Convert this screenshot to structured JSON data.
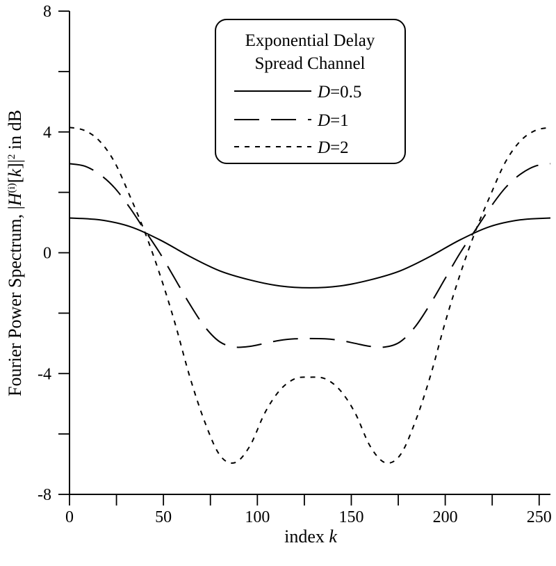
{
  "chart_data": {
    "type": "line",
    "title": "",
    "xlabel": "index k",
    "ylabel": "Fourier Power Spectrum, |H(i)[k]|2 in dB",
    "xlabel_parts": {
      "text": "index ",
      "var": "k"
    },
    "ylabel_parts": {
      "prefix": "Fourier Power Spectrum, |",
      "H": "H",
      "sup": "(i)",
      "bracket_open": "[",
      "k": "k",
      "bracket_close": "]|",
      "sq": "2",
      "suffix": " in dB"
    },
    "xlim": [
      0,
      256
    ],
    "ylim": [
      -8,
      8
    ],
    "x_ticks": [
      0,
      50,
      100,
      150,
      200,
      250
    ],
    "x_tick_labels": [
      "0",
      "50",
      "100",
      "150",
      "200",
      "250"
    ],
    "x_minor_ticks": [
      25,
      75,
      125,
      175,
      225
    ],
    "y_ticks": [
      -8,
      -4,
      0,
      4,
      8
    ],
    "y_tick_labels": [
      "-8",
      "-4",
      "0",
      "4",
      "8"
    ],
    "y_minor_ticks": [
      -6,
      -2,
      2,
      6
    ],
    "grid": false,
    "legend": {
      "title_line1": "Exponential Delay",
      "title_line2": "Spread Channel",
      "placement": "top-center"
    },
    "series": [
      {
        "name": "D=0.5",
        "name_var": "D",
        "name_val": "=0.5",
        "dash": "solid",
        "x": [
          0,
          16,
          32,
          48,
          64,
          80,
          96,
          112,
          128,
          144,
          160,
          176,
          192,
          208,
          224,
          240,
          256
        ],
        "y": [
          1.15,
          1.09,
          0.87,
          0.43,
          -0.12,
          -0.6,
          -0.9,
          -1.1,
          -1.16,
          -1.1,
          -0.9,
          -0.6,
          -0.12,
          0.43,
          0.87,
          1.09,
          1.15
        ]
      },
      {
        "name": "D=1",
        "name_var": "D",
        "name_val": "=1",
        "dash": "long-dash",
        "x": [
          0,
          8,
          16,
          24,
          32,
          40,
          48,
          56,
          64,
          72,
          80,
          88,
          96,
          104,
          112,
          120,
          128,
          136,
          144,
          152,
          160,
          168,
          176,
          184,
          192,
          200,
          208,
          216,
          224,
          232,
          240,
          248,
          256
        ],
        "y": [
          2.95,
          2.87,
          2.6,
          2.15,
          1.5,
          0.75,
          0.0,
          -0.85,
          -1.7,
          -2.45,
          -2.95,
          -3.12,
          -3.1,
          -3.0,
          -2.9,
          -2.85,
          -2.84,
          -2.85,
          -2.9,
          -3.0,
          -3.1,
          -3.12,
          -2.95,
          -2.45,
          -1.7,
          -0.85,
          0.0,
          0.75,
          1.5,
          2.15,
          2.6,
          2.87,
          2.95
        ]
      },
      {
        "name": "D=2",
        "name_var": "D",
        "name_val": "=2",
        "dash": "short-dash",
        "x": [
          0,
          8,
          16,
          24,
          32,
          40,
          48,
          56,
          64,
          72,
          80,
          88,
          96,
          104,
          112,
          120,
          128,
          136,
          144,
          152,
          160,
          168,
          176,
          184,
          192,
          200,
          208,
          216,
          224,
          232,
          240,
          248,
          256
        ],
        "y": [
          4.15,
          4.05,
          3.7,
          3.0,
          1.9,
          0.7,
          -0.7,
          -2.3,
          -4.1,
          -5.6,
          -6.7,
          -6.95,
          -6.4,
          -5.3,
          -4.55,
          -4.17,
          -4.12,
          -4.17,
          -4.55,
          -5.3,
          -6.4,
          -6.95,
          -6.7,
          -5.6,
          -4.1,
          -2.3,
          -0.7,
          0.7,
          1.9,
          3.0,
          3.7,
          4.05,
          4.15
        ]
      }
    ]
  }
}
